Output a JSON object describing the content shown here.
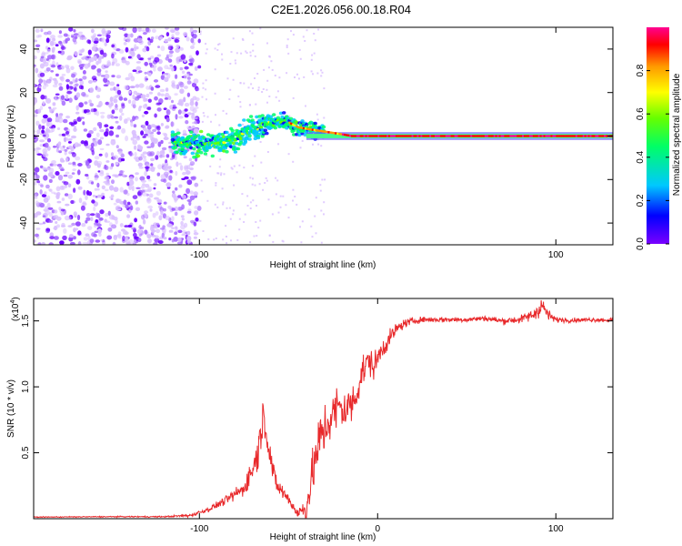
{
  "page": {
    "title": "C2E1.2026.056.00.18.R04"
  },
  "chart_data": [
    {
      "type": "heatmap",
      "name": "spectrogram",
      "title": "",
      "xlabel": "Height of straight line (km)",
      "ylabel": "Frequency (Hz)",
      "xlim": [
        -193,
        132
      ],
      "ylim": [
        -50,
        50
      ],
      "xticks": [
        -100,
        100
      ],
      "yticks": [
        -40,
        -20,
        0,
        20,
        40
      ],
      "x_tick_labels": [
        "-100",
        "100"
      ],
      "y_tick_labels": [
        "-40",
        "-20",
        "0",
        "20",
        "40"
      ],
      "colorbar": {
        "label": "Normalized spectral amplitude",
        "range": [
          0,
          1
        ],
        "ticks": [
          0.0,
          0.2,
          0.4,
          0.6,
          0.8
        ],
        "tick_labels": [
          "0.0",
          "0.2",
          "0.4",
          "0.6",
          "0.8"
        ],
        "colors": [
          "#7a00ff",
          "#0000ff",
          "#00c8ff",
          "#00ff66",
          "#66ff00",
          "#ffff00",
          "#ff9900",
          "#ff0000",
          "#ff0090"
        ]
      },
      "ridge": {
        "description": "frequency track of dominant signal",
        "x": [
          -115,
          -100,
          -90,
          -80,
          -70,
          -60,
          -52,
          -45,
          -38,
          -30,
          -22,
          -15,
          -5,
          0,
          20,
          60,
          100,
          132
        ],
        "y": [
          -3,
          -4,
          -3,
          -1,
          3,
          6,
          7,
          4,
          3,
          2,
          1,
          0,
          0,
          0,
          0,
          0,
          0,
          0
        ]
      },
      "noise_region_xlim": [
        -193,
        -100
      ]
    },
    {
      "type": "line",
      "name": "snr",
      "title": "",
      "xlabel": "Height of straight line (km)",
      "ylabel": "SNR (10 * v/v)",
      "y_multiplier_label": "(x10",
      "y_multiplier_exp": "4",
      "xlim": [
        -193,
        132
      ],
      "ylim": [
        0,
        16700
      ],
      "xticks": [
        -100,
        0,
        100
      ],
      "x_tick_labels": [
        "-100",
        "0",
        "100"
      ],
      "yticks": [
        5000,
        10000,
        15000
      ],
      "y_tick_labels": [
        "0.5",
        "1.0",
        "1.5"
      ],
      "series": [
        {
          "name": "SNR",
          "color": "#e8292b",
          "x": [
            -193,
            -150,
            -120,
            -105,
            -95,
            -85,
            -75,
            -68,
            -64,
            -60,
            -57,
            -50,
            -45,
            -40,
            -36,
            -32,
            -27,
            -22,
            -18,
            -13,
            -9,
            -5,
            -2,
            2,
            6,
            10,
            15,
            20,
            25,
            30,
            35,
            40,
            50,
            60,
            70,
            80,
            88,
            92,
            96,
            100,
            110,
            120,
            132
          ],
          "y": [
            120,
            150,
            150,
            250,
            700,
            1400,
            2300,
            4500,
            8000,
            4500,
            2600,
            1500,
            400,
            800,
            3800,
            6200,
            7500,
            8500,
            8200,
            9000,
            11000,
            12000,
            11500,
            12800,
            13500,
            14300,
            14800,
            15000,
            15100,
            15100,
            15100,
            15100,
            15100,
            15200,
            15000,
            15100,
            15500,
            16200,
            15400,
            15100,
            15050,
            15100,
            15050
          ],
          "noise_amplitude": [
            40,
            50,
            60,
            150,
            250,
            400,
            700,
            1800,
            1500,
            1200,
            800,
            600,
            500,
            1200,
            2200,
            2600,
            2400,
            2200,
            2000,
            1800,
            1600,
            1400,
            1200,
            1000,
            800,
            600,
            400,
            300,
            250,
            250,
            250,
            250,
            250,
            250,
            300,
            350,
            600,
            900,
            500,
            250,
            200,
            200,
            200
          ]
        }
      ]
    }
  ]
}
